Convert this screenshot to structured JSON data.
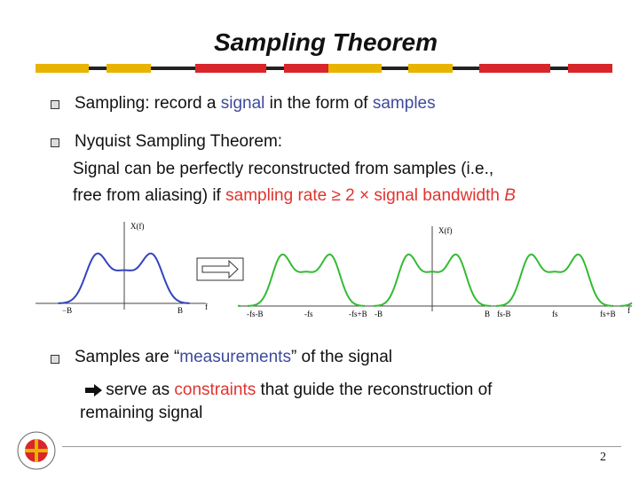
{
  "title": "Sampling Theorem",
  "bullet1": [
    "Sampling: record a ",
    "signal",
    " in the form of ",
    "samples"
  ],
  "bullet2": {
    "head": "Nyquist Sampling Theorem:",
    "line1": "Signal can be perfectly reconstructed from samples (i.e., ",
    "line2": "free from aliasing) if ",
    "highlight": "sampling rate ≥ 2 × signal bandwidth ",
    "b": "B"
  },
  "figure_left": {
    "ylabel": "X(f)",
    "ticks": [
      "−B",
      "B"
    ],
    "xlabel": "f"
  },
  "figure_right": {
    "ylabel": "X(f)",
    "ticks": [
      "-fs-B",
      "-fs",
      "-fs+B",
      "-B",
      "B",
      "fs-B",
      "fs",
      "fs+B"
    ],
    "xlabel": "f"
  },
  "bullet3": [
    "Samples are “",
    "measurements",
    "” of the signal"
  ],
  "sub3": {
    "line1": [
      " serve as ",
      "constraints",
      " that guide the reconstruction of"
    ],
    "line2": "remaining signal"
  },
  "page_number": "2"
}
